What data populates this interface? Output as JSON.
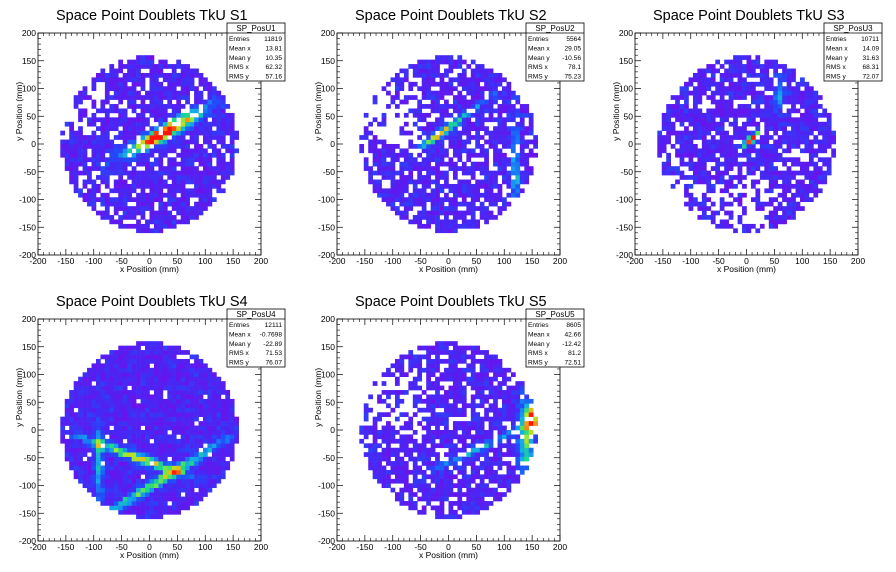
{
  "chart_data": [
    {
      "type": "heatmap",
      "title": "Space Point Doublets TkU S1",
      "xlabel": "x Position (mm)",
      "ylabel": "y Position (mm)",
      "xlim": [
        -200,
        200
      ],
      "ylim": [
        -200,
        200
      ],
      "xticks": [
        -200,
        -150,
        -100,
        -50,
        0,
        50,
        100,
        150,
        200
      ],
      "yticks": [
        -200,
        -150,
        -100,
        -50,
        0,
        50,
        100,
        150,
        200
      ],
      "colors": {
        "low": "#7a10f0",
        "mid": "#1e4cf5",
        "high": "#ff0000"
      },
      "stats": {
        "name": "SP_PosU1",
        "rows": [
          {
            "label": "Entries",
            "value": "11819"
          },
          {
            "label": "Mean x",
            "value": "13.81"
          },
          {
            "label": "Mean y",
            "value": "10.35"
          },
          {
            "label": "RMS x",
            "value": "62.32"
          },
          {
            "label": "RMS y",
            "value": "57.16"
          }
        ]
      },
      "hotspots": [
        {
          "x": 25,
          "y": 20,
          "sx": 55,
          "sy": 9,
          "angle": 30,
          "amp": 1.0
        }
      ],
      "holes_density": 0.18,
      "hole_region": [
        -160,
        20,
        -80,
        110
      ]
    },
    {
      "type": "heatmap",
      "title": "Space Point Doublets TkU S2",
      "xlabel": "x Position (mm)",
      "ylabel": "y Position (mm)",
      "xlim": [
        -200,
        200
      ],
      "ylim": [
        -200,
        200
      ],
      "xticks": [
        -200,
        -150,
        -100,
        -50,
        0,
        50,
        100,
        150,
        200
      ],
      "yticks": [
        -200,
        -150,
        -100,
        -50,
        0,
        50,
        100,
        150,
        200
      ],
      "colors": {
        "low": "#7a10f0",
        "mid": "#1e4cf5",
        "high": "#ff0000"
      },
      "stats": {
        "name": "SP_PosU2",
        "rows": [
          {
            "label": "Entries",
            "value": "5564"
          },
          {
            "label": "Mean x",
            "value": "29.05"
          },
          {
            "label": "Mean y",
            "value": "-10.56"
          },
          {
            "label": "RMS x",
            "value": "78.1"
          },
          {
            "label": "RMS y",
            "value": "75.23"
          }
        ]
      },
      "hotspots": [
        {
          "x": -20,
          "y": 15,
          "sx": 25,
          "sy": 5,
          "angle": 35,
          "amp": 0.7
        },
        {
          "x": 40,
          "y": 60,
          "sx": 40,
          "sy": 4,
          "angle": 35,
          "amp": 0.35
        },
        {
          "x": 120,
          "y": -40,
          "sx": 6,
          "sy": 60,
          "angle": 0,
          "amp": 0.35
        }
      ],
      "holes_density": 0.22,
      "hole_region": [
        -170,
        -10,
        -60,
        100
      ]
    },
    {
      "type": "heatmap",
      "title": "Space Point Doublets TkU S3",
      "xlabel": "x Position (mm)",
      "ylabel": "y Position (mm)",
      "xlim": [
        -200,
        200
      ],
      "ylim": [
        -200,
        200
      ],
      "xticks": [
        -200,
        -150,
        -100,
        -50,
        0,
        50,
        100,
        150,
        200
      ],
      "yticks": [
        -200,
        -150,
        -100,
        -50,
        0,
        50,
        100,
        150,
        200
      ],
      "colors": {
        "low": "#7a10f0",
        "mid": "#1e4cf5",
        "high": "#ff0000"
      },
      "stats": {
        "name": "SP_PosU3",
        "rows": [
          {
            "label": "Entries",
            "value": "10711"
          },
          {
            "label": "Mean x",
            "value": "14.09"
          },
          {
            "label": "Mean y",
            "value": "31.63"
          },
          {
            "label": "RMS x",
            "value": "68.31"
          },
          {
            "label": "RMS y",
            "value": "72.07"
          }
        ]
      },
      "hotspots": [
        {
          "x": 10,
          "y": 10,
          "sx": 16,
          "sy": 4,
          "angle": 40,
          "amp": 1.0
        },
        {
          "x": 60,
          "y": 90,
          "sx": 8,
          "sy": 25,
          "angle": 0,
          "amp": 0.3
        }
      ],
      "holes_density": 0.2,
      "hole_region": [
        -160,
        -140,
        40,
        -60
      ]
    },
    {
      "type": "heatmap",
      "title": "Space Point Doublets TkU S4",
      "xlabel": "x Position (mm)",
      "ylabel": "y Position (mm)",
      "xlim": [
        -200,
        200
      ],
      "ylim": [
        -200,
        200
      ],
      "xticks": [
        -200,
        -150,
        -100,
        -50,
        0,
        50,
        100,
        150,
        200
      ],
      "yticks": [
        -200,
        -150,
        -100,
        -50,
        0,
        50,
        100,
        150,
        200
      ],
      "colors": {
        "low": "#7a10f0",
        "mid": "#1e4cf5",
        "high": "#ff0000"
      },
      "stats": {
        "name": "SP_PosU4",
        "rows": [
          {
            "label": "Entries",
            "value": "12111"
          },
          {
            "label": "Mean x",
            "value": "-0.7698"
          },
          {
            "label": "Mean y",
            "value": "-22.89"
          },
          {
            "label": "RMS x",
            "value": "71.53"
          },
          {
            "label": "RMS y",
            "value": "76.07"
          }
        ]
      },
      "hotspots": [
        {
          "x": -20,
          "y": -50,
          "sx": 70,
          "sy": 6,
          "angle": -20,
          "amp": 0.65
        },
        {
          "x": 20,
          "y": -90,
          "sx": 90,
          "sy": 6,
          "angle": 32,
          "amp": 0.6
        },
        {
          "x": -90,
          "y": -60,
          "sx": 5,
          "sy": 60,
          "angle": 0,
          "amp": 0.4
        }
      ],
      "holes_density": 0.03,
      "hole_region": [
        -150,
        120,
        -80,
        160
      ]
    },
    {
      "type": "heatmap",
      "title": "Space Point Doublets TkU S5",
      "xlabel": "x Position (mm)",
      "ylabel": "y Position (mm)",
      "xlim": [
        -200,
        200
      ],
      "ylim": [
        -200,
        200
      ],
      "xticks": [
        -200,
        -150,
        -100,
        -50,
        0,
        50,
        100,
        150,
        200
      ],
      "yticks": [
        -200,
        -150,
        -100,
        -50,
        0,
        50,
        100,
        150,
        200
      ],
      "colors": {
        "low": "#7a10f0",
        "mid": "#1e4cf5",
        "high": "#ff0000"
      },
      "stats": {
        "name": "SP_PosU5",
        "rows": [
          {
            "label": "Entries",
            "value": "8605"
          },
          {
            "label": "Mean x",
            "value": "42.66"
          },
          {
            "label": "Mean y",
            "value": "-12.42"
          },
          {
            "label": "RMS x",
            "value": "81.2"
          },
          {
            "label": "RMS y",
            "value": "72.51"
          }
        ]
      },
      "hotspots": [
        {
          "x": 140,
          "y": -10,
          "sx": 10,
          "sy": 50,
          "angle": 0,
          "amp": 0.55
        },
        {
          "x": 150,
          "y": 20,
          "sx": 6,
          "sy": 15,
          "angle": 0,
          "amp": 0.9
        },
        {
          "x": 60,
          "y": -30,
          "sx": 60,
          "sy": 5,
          "angle": 25,
          "amp": 0.35
        }
      ],
      "holes_density": 0.22,
      "hole_region": [
        -140,
        -10,
        -40,
        100
      ]
    }
  ]
}
